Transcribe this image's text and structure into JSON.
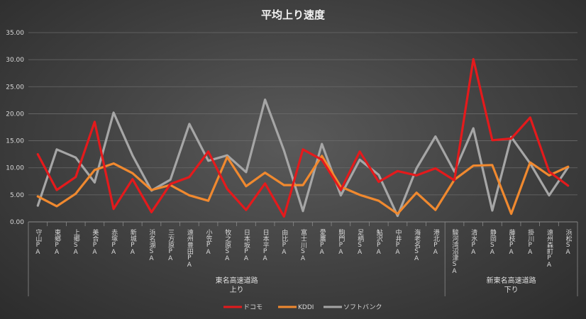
{
  "chart_data": {
    "type": "line",
    "title": "平均上り速度",
    "ylim": [
      0,
      35
    ],
    "yticks": [
      "0.00",
      "5.00",
      "10.00",
      "15.00",
      "20.00",
      "25.00",
      "30.00",
      "35.00"
    ],
    "grid": true,
    "legend_position": "bottom",
    "categories": [
      "守山PA",
      "東郷PA",
      "上郷SA",
      "美合PA",
      "赤塚PA",
      "新城PA",
      "浜名湖SA",
      "三方原PA",
      "遠州豊田PA",
      "小笠PA",
      "牧之原SA",
      "日本坂PA",
      "日本平PA",
      "由比PA",
      "富士川SA",
      "愛鷹PA",
      "駒門PA",
      "足柄SA",
      "鮎沢PA",
      "中井PA",
      "海老名SA",
      "港北PA",
      "駿河湾沼津SA",
      "清水PA",
      "静岡SA",
      "藤枝PA",
      "掛川PA",
      "遠州森町PA",
      "浜松SA"
    ],
    "groups": [
      {
        "label_line1": "東名高速道路",
        "label_line2": "上り",
        "start": 0,
        "end": 21
      },
      {
        "label_line1": "新東名高速道路",
        "label_line2": "下り",
        "start": 22,
        "end": 28
      }
    ],
    "series": [
      {
        "name": "ドコモ",
        "color": "#e41a1c",
        "values": [
          12.5,
          5.9,
          8.3,
          18.5,
          2.4,
          7.9,
          1.8,
          7.0,
          8.3,
          13.0,
          6.1,
          2.2,
          7.1,
          1.0,
          13.4,
          11.5,
          5.9,
          13.0,
          7.4,
          9.4,
          8.6,
          9.9,
          7.7,
          30.1,
          15.1,
          15.4,
          19.3,
          9.3,
          6.7
        ]
      },
      {
        "name": "KDDI",
        "color": "#f0892f",
        "values": [
          4.7,
          2.9,
          5.2,
          9.6,
          10.8,
          9.0,
          5.9,
          6.8,
          4.9,
          3.9,
          12.0,
          6.6,
          9.1,
          6.8,
          6.8,
          12.2,
          6.5,
          5.0,
          3.9,
          1.5,
          5.4,
          2.2,
          7.8,
          10.4,
          10.5,
          1.5,
          11.0,
          8.6,
          10.2
        ]
      },
      {
        "name": "ソフトバンク",
        "color": "#a6a6a6",
        "values": [
          3.0,
          13.4,
          11.9,
          7.3,
          20.2,
          12.3,
          5.8,
          7.8,
          18.1,
          11.3,
          12.3,
          9.2,
          22.6,
          13.2,
          2.0,
          14.4,
          4.9,
          11.5,
          8.7,
          1.1,
          9.9,
          15.8,
          9.3,
          17.3,
          2.1,
          15.7,
          10.8,
          4.9,
          10.1
        ]
      }
    ]
  }
}
